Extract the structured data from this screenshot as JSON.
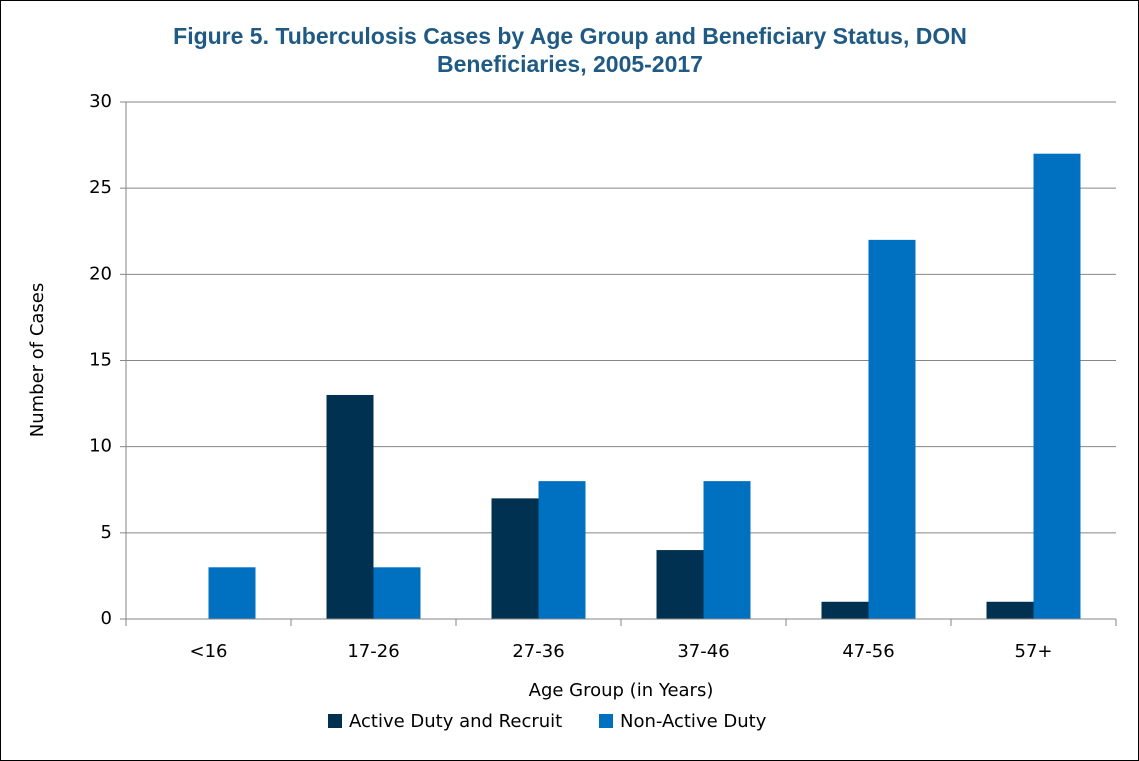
{
  "chart_data": {
    "type": "bar",
    "title": "Figure 5. Tuberculosis Cases by Age Group and Beneficiary Status, DON Beneficiaries, 2005-2017",
    "x_label": "Age Group (in Years)",
    "y_label": "Number of Cases",
    "categories": [
      "<16",
      "17-26",
      "27-36",
      "37-46",
      "47-56",
      "57+"
    ],
    "series": [
      {
        "name": "Active Duty and Recruit",
        "color": "#003150",
        "values": [
          0,
          13,
          7,
          4,
          1,
          1
        ]
      },
      {
        "name": "Non-Active Duty",
        "color": "#0070c0",
        "values": [
          3,
          3,
          8,
          8,
          22,
          27
        ]
      }
    ],
    "ylim": [
      0,
      30
    ],
    "yticks": [
      0,
      5,
      10,
      15,
      20,
      25,
      30
    ],
    "grid": true,
    "legend": "bottom"
  }
}
